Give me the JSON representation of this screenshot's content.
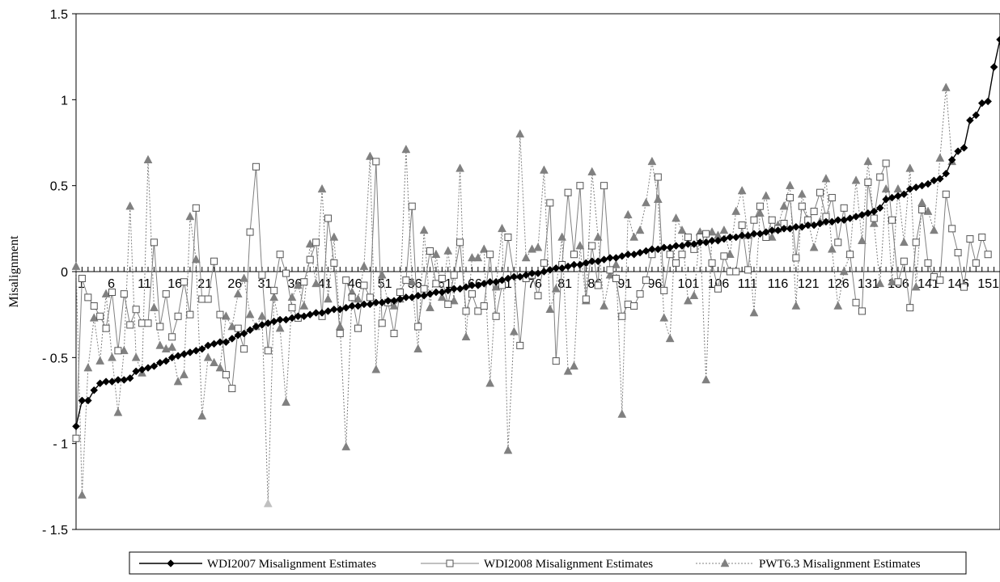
{
  "chart_data": {
    "type": "line",
    "ylabel": "Misalignment",
    "ylim": [
      -1.5,
      1.5
    ],
    "yticks": [
      -1.5,
      -1,
      -0.5,
      0,
      0.5,
      1,
      1.5
    ],
    "ytick_labels": [
      "- 1.5",
      "- 1",
      "- 0.5",
      "0",
      "0.5",
      "1",
      "1.5"
    ],
    "x_count": 155,
    "xticks": [
      1,
      6,
      11,
      16,
      21,
      26,
      31,
      36,
      41,
      46,
      51,
      56,
      61,
      66,
      71,
      76,
      81,
      86,
      91,
      96,
      101,
      106,
      111,
      116,
      121,
      126,
      131,
      136,
      141,
      146,
      151
    ],
    "xtick_labels": [
      "1",
      "6",
      "11",
      "16",
      "21",
      "26",
      "31",
      "36",
      "41",
      "46",
      "51",
      "56",
      "61",
      "66",
      "71",
      "76",
      "81",
      "86",
      "91",
      "96",
      "101",
      "106",
      "111",
      "116",
      "121",
      "126",
      "131",
      "136",
      "141",
      "146",
      "151"
    ],
    "legend_position": "bottom",
    "series": [
      {
        "name": "WDI2007 Misalignment Estimates",
        "color": "#000000",
        "marker": "diamond",
        "values": [
          -0.9,
          -0.75,
          -0.75,
          -0.69,
          -0.65,
          -0.64,
          -0.64,
          -0.63,
          -0.63,
          -0.62,
          -0.58,
          -0.57,
          -0.56,
          -0.55,
          -0.53,
          -0.52,
          -0.5,
          -0.49,
          -0.48,
          -0.47,
          -0.46,
          -0.45,
          -0.43,
          -0.42,
          -0.41,
          -0.41,
          -0.39,
          -0.37,
          -0.36,
          -0.34,
          -0.32,
          -0.31,
          -0.3,
          -0.29,
          -0.28,
          -0.28,
          -0.27,
          -0.26,
          -0.26,
          -0.25,
          -0.24,
          -0.24,
          -0.23,
          -0.22,
          -0.22,
          -0.21,
          -0.2,
          -0.2,
          -0.19,
          -0.19,
          -0.18,
          -0.18,
          -0.17,
          -0.17,
          -0.16,
          -0.15,
          -0.15,
          -0.14,
          -0.14,
          -0.13,
          -0.12,
          -0.12,
          -0.11,
          -0.1,
          -0.1,
          -0.09,
          -0.08,
          -0.08,
          -0.07,
          -0.06,
          -0.06,
          -0.05,
          -0.04,
          -0.03,
          -0.03,
          -0.02,
          -0.01,
          -0.01,
          0.0,
          0.01,
          0.02,
          0.02,
          0.03,
          0.04,
          0.04,
          0.05,
          0.06,
          0.06,
          0.07,
          0.08,
          0.08,
          0.09,
          0.1,
          0.1,
          0.11,
          0.12,
          0.13,
          0.13,
          0.14,
          0.14,
          0.15,
          0.15,
          0.16,
          0.16,
          0.17,
          0.17,
          0.18,
          0.18,
          0.19,
          0.2,
          0.2,
          0.21,
          0.21,
          0.22,
          0.22,
          0.23,
          0.24,
          0.24,
          0.25,
          0.25,
          0.26,
          0.26,
          0.27,
          0.27,
          0.28,
          0.29,
          0.29,
          0.3,
          0.3,
          0.31,
          0.32,
          0.33,
          0.34,
          0.35,
          0.37,
          0.42,
          0.43,
          0.44,
          0.45,
          0.48,
          0.49,
          0.5,
          0.51,
          0.53,
          0.54,
          0.57,
          0.65,
          0.7,
          0.72,
          0.88,
          0.91,
          0.98,
          0.99,
          1.19,
          1.35
        ]
      },
      {
        "name": "WDI2008 Misalignment Estimates",
        "color": "#808080",
        "marker": "square",
        "values": [
          -0.97,
          -0.04,
          -0.15,
          -0.2,
          -0.26,
          -0.33,
          -0.12,
          -0.46,
          -0.13,
          -0.31,
          -0.22,
          -0.3,
          -0.3,
          0.17,
          -0.32,
          -0.13,
          -0.38,
          -0.26,
          -0.06,
          -0.25,
          0.37,
          -0.16,
          -0.16,
          0.06,
          -0.25,
          -0.6,
          -0.68,
          -0.33,
          -0.45,
          0.23,
          0.61,
          -0.02,
          -0.46,
          -0.11,
          0.1,
          -0.01,
          -0.21,
          -0.27,
          -0.06,
          0.07,
          0.17,
          -0.26,
          0.31,
          0.05,
          -0.36,
          -0.05,
          -0.15,
          -0.33,
          -0.08,
          -0.15,
          0.64,
          -0.3,
          -0.18,
          -0.36,
          -0.12,
          -0.05,
          0.38,
          -0.32,
          -0.1,
          0.12,
          -0.07,
          -0.04,
          -0.19,
          -0.02,
          0.17,
          -0.23,
          -0.13,
          -0.23,
          -0.2,
          0.1,
          -0.26,
          -0.08,
          0.2,
          -0.02,
          -0.43,
          -0.04,
          -0.02,
          -0.14,
          0.05,
          0.4,
          -0.52,
          0.04,
          0.46,
          0.1,
          0.5,
          -0.16,
          0.15,
          -0.08,
          0.5,
          0.01,
          -0.04,
          -0.26,
          -0.19,
          -0.2,
          -0.13,
          -0.05,
          0.1,
          0.55,
          -0.11,
          0.1,
          0.05,
          0.1,
          0.2,
          0.13,
          0.2,
          0.22,
          0.05,
          -0.1,
          0.09,
          0.0,
          0.0,
          0.27,
          0.01,
          0.3,
          0.38,
          0.2,
          0.3,
          0.25,
          0.28,
          0.43,
          0.08,
          0.38,
          0.3,
          0.35,
          0.46,
          0.32,
          0.43,
          0.17,
          0.37,
          0.1,
          -0.18,
          -0.23,
          0.52,
          0.31,
          0.55,
          0.63,
          0.3,
          -0.06,
          0.06,
          -0.21,
          0.17,
          0.36,
          0.05,
          -0.03,
          -0.05,
          0.45,
          0.25,
          0.11,
          -0.09,
          0.19,
          0.05,
          0.2,
          0.1
        ]
      },
      {
        "name": "PWT6.3 Misalignment Estimates",
        "color": "#808080",
        "marker": "triangle",
        "dashed": true,
        "values": [
          0.03,
          -1.3,
          -0.56,
          -0.27,
          -0.52,
          -0.13,
          -0.5,
          -0.82,
          -0.46,
          0.38,
          -0.5,
          -0.59,
          0.65,
          -0.21,
          -0.43,
          -0.45,
          -0.44,
          -0.64,
          -0.6,
          0.32,
          0.07,
          -0.84,
          -0.5,
          -0.53,
          -0.56,
          -0.26,
          -0.32,
          -0.13,
          -0.04,
          -0.25,
          -0.32,
          -0.26,
          -1.35,
          -0.15,
          -0.33,
          -0.76,
          -0.15,
          -0.08,
          -0.2,
          0.16,
          -0.07,
          0.48,
          -0.16,
          0.2,
          -0.32,
          -1.02,
          -0.12,
          -0.16,
          0.03,
          0.67,
          -0.57,
          -0.02,
          -0.18,
          -0.2,
          -0.16,
          0.71,
          -0.06,
          -0.45,
          0.24,
          -0.21,
          0.1,
          -0.15,
          0.12,
          -0.17,
          0.6,
          -0.38,
          0.08,
          0.08,
          0.13,
          -0.65,
          -0.09,
          0.25,
          -1.04,
          -0.35,
          0.8,
          0.08,
          0.13,
          0.14,
          0.59,
          -0.22,
          -0.1,
          0.2,
          -0.58,
          -0.55,
          0.15,
          -0.17,
          0.58,
          0.2,
          -0.2,
          -0.02,
          0.04,
          -0.83,
          0.33,
          0.2,
          0.24,
          0.4,
          0.64,
          0.42,
          -0.27,
          -0.39,
          0.31,
          0.24,
          -0.17,
          -0.14,
          0.23,
          -0.63,
          0.23,
          0.21,
          0.24,
          0.1,
          0.35,
          0.47,
          0.21,
          -0.24,
          0.34,
          0.44,
          0.2,
          0.27,
          0.38,
          0.5,
          -0.2,
          0.45,
          0.3,
          0.14,
          0.29,
          0.54,
          0.13,
          -0.2,
          0.0,
          0.1,
          0.53,
          0.18,
          0.64,
          0.28,
          -0.07,
          0.48,
          -0.06,
          0.48,
          0.17,
          0.6,
          -0.09,
          0.4,
          0.35,
          0.24,
          0.66,
          1.07,
          0.64
        ]
      }
    ]
  }
}
